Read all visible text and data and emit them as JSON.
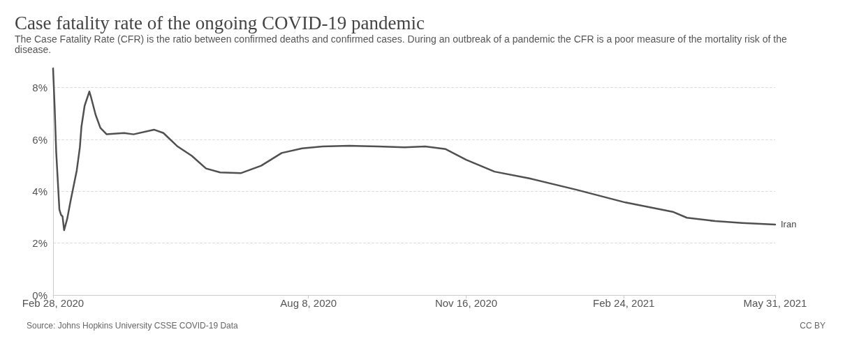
{
  "chart_data": {
    "type": "line",
    "title": "Case fatality rate of the ongoing COVID-19 pandemic",
    "subtitle": "The Case Fatality Rate (CFR) is the ratio between confirmed deaths and confirmed cases. During an outbreak of a pandemic the CFR is a poor measure of the mortality risk of the disease.",
    "annotations": [
      "Source: Johns Hopkins University CSSE COVID-19 Data",
      "CC BY"
    ],
    "x": [
      "2020-02-28",
      "2020-02-29",
      "2020-03-01",
      "2020-03-02",
      "2020-03-03",
      "2020-03-04",
      "2020-03-05",
      "2020-03-06",
      "2020-03-08",
      "2020-03-10",
      "2020-03-12",
      "2020-03-14",
      "2020-03-16",
      "2020-03-17",
      "2020-03-19",
      "2020-03-22",
      "2020-03-23",
      "2020-03-26",
      "2020-03-29",
      "2020-04-02",
      "2020-04-13",
      "2020-04-19",
      "2020-05-02",
      "2020-05-08",
      "2020-05-17",
      "2020-05-26",
      "2020-06-04",
      "2020-06-13",
      "2020-06-26",
      "2020-07-09",
      "2020-07-22",
      "2020-08-04",
      "2020-08-17",
      "2020-09-03",
      "2020-09-21",
      "2020-10-08",
      "2020-10-21",
      "2020-11-03",
      "2020-11-16",
      "2020-12-04",
      "2020-12-26",
      "2021-01-25",
      "2021-02-25",
      "2021-03-27",
      "2021-04-05",
      "2021-04-23",
      "2021-05-10",
      "2021-05-31"
    ],
    "series": [
      {
        "name": "Iran",
        "color": "#505050",
        "values": [
          8.74,
          7.25,
          5.5,
          4.4,
          3.3,
          3.1,
          3.03,
          2.5,
          2.95,
          3.6,
          4.2,
          4.8,
          5.7,
          6.5,
          7.3,
          7.85,
          7.65,
          6.95,
          6.45,
          6.2,
          6.25,
          6.2,
          6.38,
          6.25,
          5.73,
          5.37,
          4.88,
          4.73,
          4.7,
          4.99,
          5.48,
          5.66,
          5.73,
          5.76,
          5.73,
          5.7,
          5.73,
          5.63,
          5.22,
          4.76,
          4.5,
          4.06,
          3.57,
          3.21,
          2.98,
          2.85,
          2.78,
          2.72
        ]
      }
    ],
    "xlim": [
      "2020-02-28",
      "2021-05-31"
    ],
    "xticks": [
      {
        "value": "2020-02-28",
        "label": "Feb 28, 2020"
      },
      {
        "value": "2020-08-08",
        "label": "Aug 8, 2020"
      },
      {
        "value": "2020-11-16",
        "label": "Nov 16, 2020"
      },
      {
        "value": "2021-02-24",
        "label": "Feb 24, 2021"
      },
      {
        "value": "2021-05-31",
        "label": "May 31, 2021"
      }
    ],
    "ylim": [
      0,
      8.8
    ],
    "yticks": [
      {
        "value": 0,
        "label": "0%"
      },
      {
        "value": 2,
        "label": "2%"
      },
      {
        "value": 4,
        "label": "4%"
      },
      {
        "value": 6,
        "label": "6%"
      },
      {
        "value": 8,
        "label": "8%"
      }
    ],
    "grid": "y",
    "line_style": "solid"
  }
}
